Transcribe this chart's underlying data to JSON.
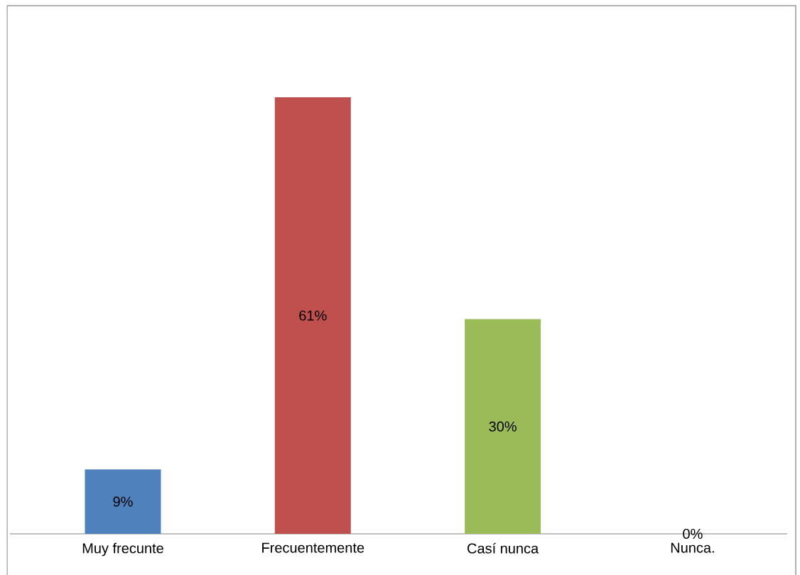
{
  "chart_data": {
    "type": "bar",
    "categories": [
      "Muy frecunte",
      "Frecuentemente",
      "Casí nunca",
      "Nunca."
    ],
    "values": [
      9,
      61,
      30,
      0
    ],
    "colors": [
      "#4f81bd",
      "#c0504d",
      "#9bbb59",
      "#8064a2"
    ],
    "value_labels": [
      "9%",
      "61%",
      "30%",
      "0%"
    ]
  }
}
